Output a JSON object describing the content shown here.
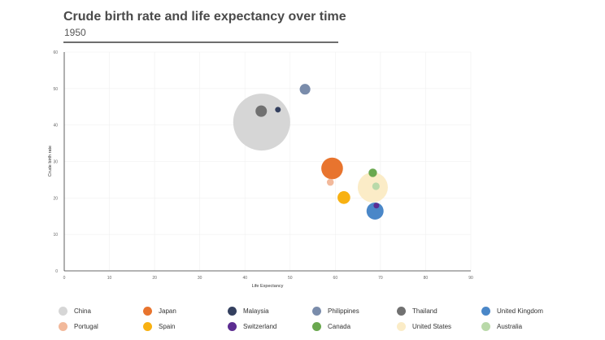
{
  "title": "Crude birth rate and life expectancy over time",
  "subtitle": "1950",
  "chart_data": {
    "type": "scatter",
    "title": "Crude birth rate and life expectancy over time",
    "subtitle": "1950",
    "xlabel": "Life Expectancy",
    "ylabel": "Crude birth rate",
    "xlim": [
      0,
      90
    ],
    "ylim": [
      0,
      60
    ],
    "x_ticks": [
      "0",
      "10",
      "20",
      "30",
      "40",
      "50",
      "60",
      "70",
      "80",
      "90"
    ],
    "y_ticks": [
      "0",
      "10",
      "20",
      "30",
      "40",
      "50",
      "60"
    ],
    "grid": true,
    "legend_position": "bottom",
    "series": [
      {
        "name": "China",
        "color": "#d6d6d6",
        "x": 43.7,
        "y": 40.8,
        "size": 1
      },
      {
        "name": "Japan",
        "color": "#e8742e",
        "x": 59.3,
        "y": 28.1,
        "size": 0.145
      },
      {
        "name": "Malaysia",
        "color": "#34405f",
        "x": 47.3,
        "y": 44.2,
        "size": 0.009
      },
      {
        "name": "Philippines",
        "color": "#7a8cab",
        "x": 53.3,
        "y": 49.8,
        "size": 0.035
      },
      {
        "name": "Thailand",
        "color": "#717171",
        "x": 43.6,
        "y": 43.8,
        "size": 0.04
      },
      {
        "name": "United Kingdom",
        "color": "#4a87c8",
        "x": 68.8,
        "y": 16.4,
        "size": 0.09
      },
      {
        "name": "Portugal",
        "color": "#f2b99b",
        "x": 58.9,
        "y": 24.3,
        "size": 0.015
      },
      {
        "name": "Spain",
        "color": "#f8b112",
        "x": 61.9,
        "y": 20.1,
        "size": 0.05
      },
      {
        "name": "Switzerland",
        "color": "#5c2d91",
        "x": 69.1,
        "y": 17.9,
        "size": 0.008
      },
      {
        "name": "Canada",
        "color": "#6aa84f",
        "x": 68.3,
        "y": 26.9,
        "size": 0.022
      },
      {
        "name": "United States",
        "color": "#fbecc7",
        "x": 68.3,
        "y": 22.9,
        "size": 0.28
      },
      {
        "name": "Australia",
        "color": "#b9d9a9",
        "x": 69.0,
        "y": 23.2,
        "size": 0.017
      }
    ]
  }
}
